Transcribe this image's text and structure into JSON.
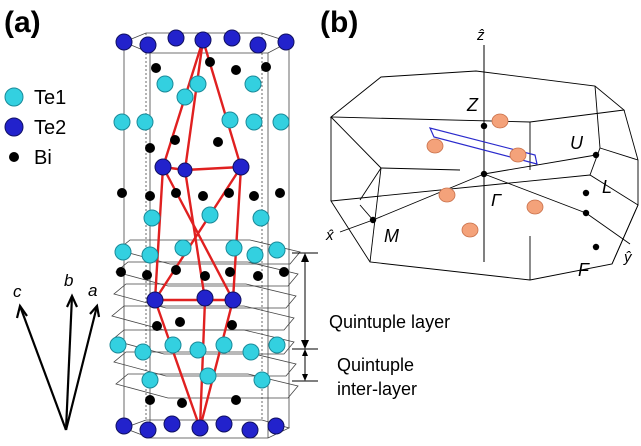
{
  "panel_a": {
    "label": "(a)",
    "legend": [
      {
        "name": "Te1",
        "color": "#33d0e0"
      },
      {
        "name": "Te2",
        "color": "#2222cc"
      },
      {
        "name": "Bi",
        "color": "#000000"
      }
    ],
    "lattice_vectors": [
      "c",
      "b",
      "a"
    ],
    "annotations": {
      "quintuple_layer": "Quintuple layer",
      "inter_layer_line1": "Quintuple",
      "inter_layer_line2": "inter-layer"
    },
    "colors": {
      "rhombohedral_cell": "#e02020"
    }
  },
  "panel_b": {
    "label": "(b)",
    "axis_labels": {
      "z": "ẑ",
      "x": "x̂",
      "y": "ŷ"
    },
    "k_points": [
      "Z",
      "U",
      "L",
      "Γ",
      "M",
      "F"
    ],
    "colors": {
      "orange_points": "#f4a27a",
      "plane": "#2a2acc"
    }
  }
}
